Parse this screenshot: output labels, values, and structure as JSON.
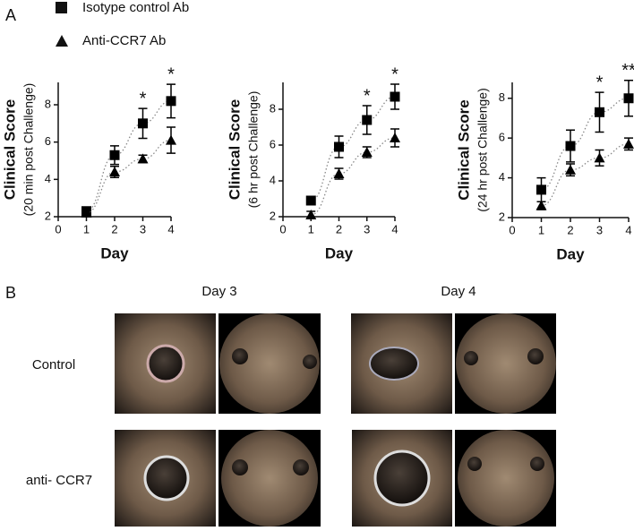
{
  "panel_a_label": "A",
  "panel_b_label": "B",
  "chart_data": [
    {
      "type": "line",
      "ylabel": "Clinical Score",
      "ylabel_sub": "(20 min post Challenge)",
      "xlabel": "Day",
      "x": [
        1,
        2,
        3,
        4
      ],
      "xlim": [
        0,
        4
      ],
      "xticks": [
        0,
        1,
        2,
        3,
        4
      ],
      "ylim": [
        2,
        9.2
      ],
      "yticks": [
        2,
        4,
        6,
        8
      ],
      "series": [
        {
          "name": "Isotype control Ab",
          "marker": "square",
          "color": "#000000",
          "values": [
            2.3,
            5.3,
            7.0,
            8.2
          ],
          "errors": [
            0.1,
            0.5,
            0.8,
            0.9
          ]
        },
        {
          "name": "Anti-CCR7 Ab",
          "marker": "triangle",
          "color": "#000000",
          "values": [
            2.2,
            4.4,
            5.1,
            6.1
          ],
          "errors": [
            0.1,
            0.3,
            0.2,
            0.7
          ]
        }
      ],
      "annotations": [
        {
          "text": "*",
          "x": 3
        },
        {
          "text": "*",
          "x": 4
        }
      ]
    },
    {
      "type": "line",
      "ylabel": "Clinical Score",
      "ylabel_sub": "(6 hr post Challenge)",
      "xlabel": "Day",
      "x": [
        1,
        2,
        3,
        4
      ],
      "xlim": [
        0,
        4
      ],
      "xticks": [
        0,
        1,
        2,
        3,
        4
      ],
      "ylim": [
        2,
        9.5
      ],
      "yticks": [
        2,
        4,
        6,
        8
      ],
      "series": [
        {
          "name": "Isotype control Ab",
          "marker": "square",
          "color": "#000000",
          "values": [
            2.9,
            5.9,
            7.4,
            8.7
          ],
          "errors": [
            0.2,
            0.6,
            0.8,
            0.7
          ]
        },
        {
          "name": "Anti-CCR7 Ab",
          "marker": "triangle",
          "color": "#000000",
          "values": [
            2.1,
            4.4,
            5.6,
            6.4
          ],
          "errors": [
            0.2,
            0.3,
            0.3,
            0.5
          ]
        }
      ],
      "annotations": [
        {
          "text": "*",
          "x": 3
        },
        {
          "text": "*",
          "x": 4
        }
      ]
    },
    {
      "type": "line",
      "ylabel": "Clinical Score",
      "ylabel_sub": "(24 hr post Challenge)",
      "xlabel": "Day",
      "x": [
        1,
        2,
        3,
        4
      ],
      "xlim": [
        0,
        4
      ],
      "xticks": [
        0,
        1,
        2,
        3,
        4
      ],
      "ylim": [
        2,
        8.8
      ],
      "yticks": [
        2,
        4,
        6,
        8
      ],
      "series": [
        {
          "name": "Isotype control Ab",
          "marker": "square",
          "color": "#000000",
          "values": [
            3.4,
            5.6,
            7.3,
            8.0
          ],
          "errors": [
            0.6,
            0.8,
            1.0,
            0.9
          ]
        },
        {
          "name": "Anti-CCR7 Ab",
          "marker": "triangle",
          "color": "#000000",
          "values": [
            2.6,
            4.4,
            5.0,
            5.7
          ],
          "errors": [
            0.2,
            0.3,
            0.4,
            0.3
          ]
        }
      ],
      "annotations": [
        {
          "text": "*",
          "x": 3
        },
        {
          "text": "**",
          "x": 4
        }
      ]
    }
  ],
  "panel_b": {
    "columns": [
      "Day 3",
      "Day 4"
    ],
    "rows": [
      "Control",
      "anti- CCR7"
    ]
  }
}
